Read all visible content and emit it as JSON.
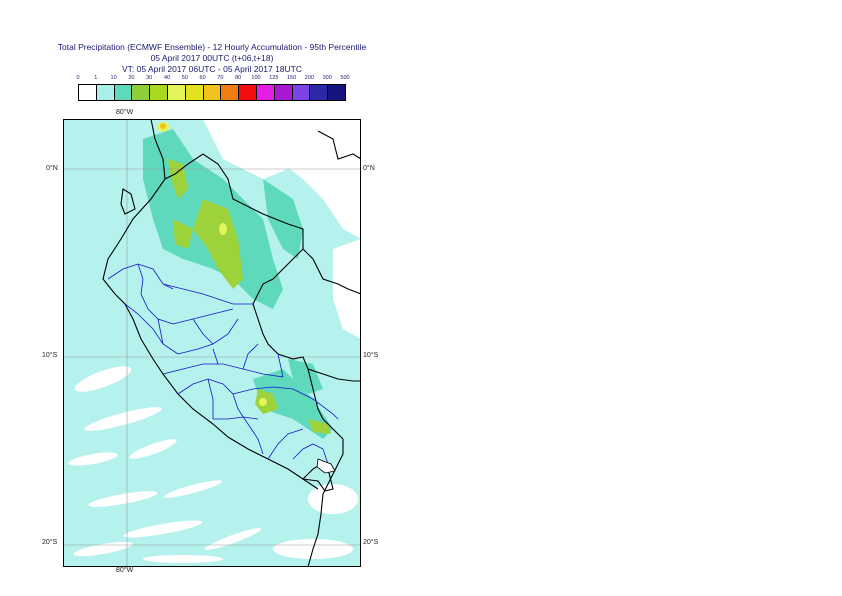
{
  "header": {
    "title": "Total Precipitation (ECMWF Ensemble) - 12 Hourly Accumulation - 95th Percentile",
    "base": "05 April 2017 00UTC (t+06,t+18)",
    "valid": "VT: 05 April 2017 06UTC - 05 April 2017 18UTC"
  },
  "colorbar": {
    "ticks": [
      "0",
      "1",
      "10",
      "20",
      "30",
      "40",
      "50",
      "60",
      "70",
      "80",
      "100",
      "125",
      "150",
      "200",
      "300",
      "500"
    ],
    "colors": [
      "#ffffff",
      "#a9f0ea",
      "#5fd9bc",
      "#8fce3a",
      "#a8d820",
      "#e4f55a",
      "#e2e21f",
      "#f2c21c",
      "#f07d11",
      "#f20e0e",
      "#e51ee5",
      "#a81ad2",
      "#7a44e6",
      "#2a2aa8",
      "#14147a"
    ]
  },
  "axes": {
    "lon_top": "80°W",
    "lon_bottom": "80°W",
    "lat_left": [
      "0°N",
      "10°S",
      "20°S"
    ],
    "lat_right": [
      "0°N",
      "10°S",
      "20°S"
    ]
  }
}
